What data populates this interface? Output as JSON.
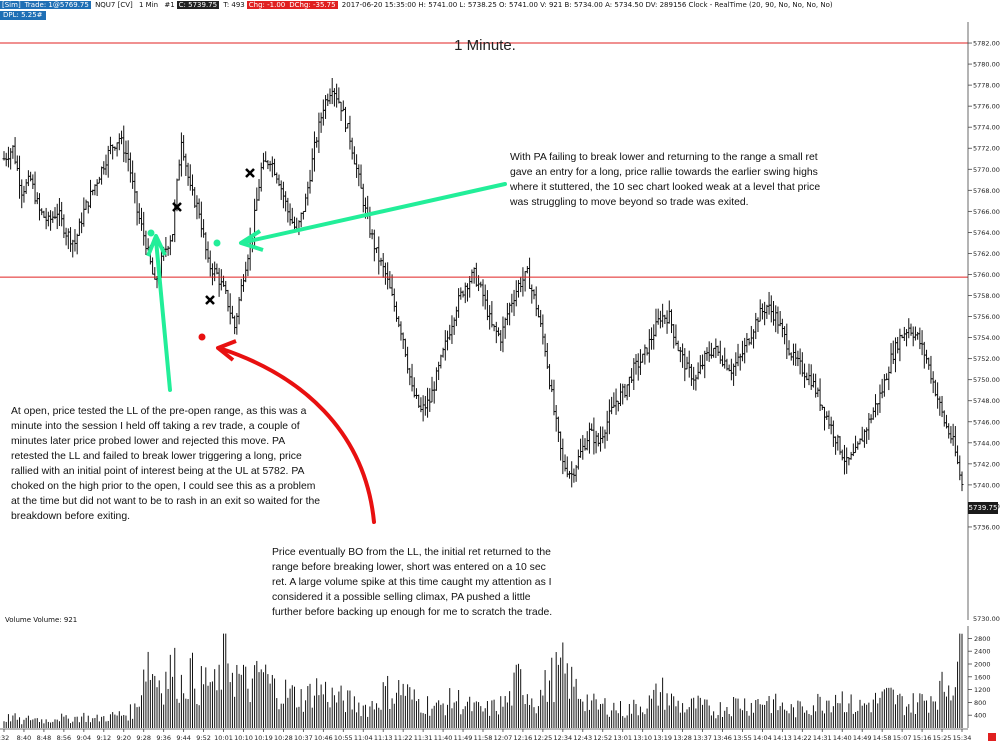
{
  "header": {
    "sim": "[Sim]",
    "trade": "Trade: 1@5769.75",
    "instrument": "NQU7 [CV]",
    "interval": "1 Min",
    "bar": "#1",
    "close": "C: 5739.75",
    "ticks": "T: 493",
    "chg": "Chg: -1.00",
    "dchg": "DChg: -35.75",
    "session": "2017-06-20 15:35:00 H: 5741.00 L: 5738.25 O: 5741.00 V: 921 B: 5734.00 A: 5734.50 DV: 289156 Clock - RealTime  (20, 90, No, No, No, No)",
    "dpl": "DPL: 5.25#"
  },
  "title": "1 Minute.",
  "annotations": {
    "open_note": "At open, price tested the LL of the pre-open range, as this was a minute into the session I held off taking a rev trade, a couple of minutes later price probed lower and rejected this move. PA retested the LL and failed to break lower triggering a long, price rallied with an initial point of interest being at the UL at 5782.  PA choked on the high prior to the open, I could see this as a problem at the time but did not want to be to rash in an exit so waited for the breakdown before exiting.",
    "long_note": "With PA failing to break lower and returning to the range a small ret gave an entry for a long, price rallie towards the earlier swing highs where it stuttered, the 10 sec chart looked weak at a level that price was struggling to move beyond so trade was exited.",
    "short_note": "Price eventually BO from the LL, the initial ret returned to the range before breaking lower, short was entered on a 10 sec ret.  A large volume spike at this time caught my attention as I considered it a possible selling climax, PA pushed a little further before backing up enough for me to scratch the trade."
  },
  "volume_panel": {
    "label": "Volume  Volume: 921",
    "ticks": [
      "400",
      "800",
      "1200",
      "1600",
      "2000",
      "2400",
      "2800"
    ],
    "top_tick": "5730.00"
  },
  "last_price_tag": "5739.75",
  "colors": {
    "up": "#111111",
    "level": "#e02020",
    "green": "#22ee99",
    "red": "#e81010",
    "tag": "#1a1a1a"
  },
  "chart_data": {
    "type": "bar",
    "ylim": [
      5734,
      5784
    ],
    "y_ticks": [
      "5736.00",
      "5738.00",
      "5740.00",
      "5742.00",
      "5744.00",
      "5746.00",
      "5748.00",
      "5750.00",
      "5752.00",
      "5754.00",
      "5756.00",
      "5758.00",
      "5760.00",
      "5762.00",
      "5764.00",
      "5766.00",
      "5768.00",
      "5770.00",
      "5772.00",
      "5774.00",
      "5776.00",
      "5778.00",
      "5780.00",
      "5782.00"
    ],
    "x_ticks": [
      ":32",
      "8:40",
      "8:48",
      "8:56",
      "9:04",
      "9:12",
      "9:20",
      "9:28",
      "9:36",
      "9:44",
      "9:52",
      "10:01",
      "10:10",
      "10:19",
      "10:28",
      "10:37",
      "10:46",
      "10:55",
      "11:04",
      "11:13",
      "11:22",
      "11:31",
      "11:40",
      "11:49",
      "11:58",
      "12:07",
      "12:16",
      "12:25",
      "12:34",
      "12:43",
      "12:52",
      "13:01",
      "13:10",
      "13:19",
      "13:28",
      "13:37",
      "13:46",
      "13:55",
      "14:04",
      "14:13",
      "14:22",
      "14:31",
      "14:40",
      "14:49",
      "14:58",
      "15:07",
      "15:16",
      "15:25",
      "15:34"
    ],
    "levels": [
      5782,
      5759.75
    ],
    "close_path": [
      [
        0,
        5771
      ],
      [
        4,
        5772
      ],
      [
        8,
        5768
      ],
      [
        12,
        5769
      ],
      [
        16,
        5766
      ],
      [
        20,
        5765
      ],
      [
        24,
        5766
      ],
      [
        28,
        5764
      ],
      [
        32,
        5763
      ],
      [
        36,
        5766
      ],
      [
        40,
        5768
      ],
      [
        44,
        5770
      ],
      [
        48,
        5772
      ],
      [
        52,
        5773
      ],
      [
        56,
        5771
      ],
      [
        60,
        5766
      ],
      [
        64,
        5763
      ],
      [
        68,
        5759
      ],
      [
        72,
        5762
      ],
      [
        76,
        5764
      ],
      [
        80,
        5773
      ],
      [
        84,
        5768
      ],
      [
        88,
        5766
      ],
      [
        92,
        5761
      ],
      [
        96,
        5760
      ],
      [
        100,
        5758
      ],
      [
        104,
        5755
      ],
      [
        108,
        5760
      ],
      [
        112,
        5764
      ],
      [
        116,
        5770
      ],
      [
        120,
        5771
      ],
      [
        124,
        5769
      ],
      [
        128,
        5766
      ],
      [
        132,
        5764
      ],
      [
        136,
        5767
      ],
      [
        140,
        5772
      ],
      [
        144,
        5776
      ],
      [
        148,
        5778
      ],
      [
        152,
        5776
      ],
      [
        156,
        5773
      ],
      [
        160,
        5769
      ],
      [
        164,
        5765
      ],
      [
        168,
        5762
      ],
      [
        172,
        5760
      ],
      [
        176,
        5757
      ],
      [
        180,
        5754
      ],
      [
        184,
        5749
      ],
      [
        188,
        5747
      ],
      [
        192,
        5748
      ],
      [
        196,
        5751
      ],
      [
        200,
        5754
      ],
      [
        204,
        5757
      ],
      [
        208,
        5759
      ],
      [
        212,
        5760
      ],
      [
        216,
        5758
      ],
      [
        220,
        5755
      ],
      [
        224,
        5754
      ],
      [
        228,
        5757
      ],
      [
        232,
        5759
      ],
      [
        236,
        5760
      ],
      [
        240,
        5757
      ],
      [
        244,
        5753
      ],
      [
        248,
        5747
      ],
      [
        252,
        5742
      ],
      [
        256,
        5741
      ],
      [
        260,
        5743
      ],
      [
        264,
        5745
      ],
      [
        268,
        5744
      ],
      [
        272,
        5746
      ],
      [
        276,
        5748
      ],
      [
        280,
        5749
      ],
      [
        284,
        5751
      ],
      [
        288,
        5752
      ],
      [
        292,
        5754
      ],
      [
        296,
        5756
      ],
      [
        300,
        5756
      ],
      [
        304,
        5753
      ],
      [
        308,
        5751
      ],
      [
        312,
        5750
      ],
      [
        316,
        5752
      ],
      [
        320,
        5753
      ],
      [
        324,
        5752
      ],
      [
        328,
        5751
      ],
      [
        332,
        5752
      ],
      [
        336,
        5754
      ],
      [
        340,
        5756
      ],
      [
        344,
        5757
      ],
      [
        348,
        5756
      ],
      [
        352,
        5754
      ],
      [
        356,
        5752
      ],
      [
        360,
        5751
      ],
      [
        364,
        5750
      ],
      [
        368,
        5748
      ],
      [
        372,
        5746
      ],
      [
        376,
        5744
      ],
      [
        380,
        5742
      ],
      [
        384,
        5743
      ],
      [
        388,
        5745
      ],
      [
        392,
        5747
      ],
      [
        396,
        5749
      ],
      [
        400,
        5752
      ],
      [
        404,
        5754
      ],
      [
        408,
        5755
      ],
      [
        412,
        5754
      ],
      [
        416,
        5752
      ],
      [
        420,
        5749
      ],
      [
        424,
        5746
      ],
      [
        428,
        5744
      ],
      [
        432,
        5740
      ]
    ],
    "volume_bars": [
      [
        0,
        300
      ],
      [
        4,
        400
      ],
      [
        8,
        200
      ],
      [
        12,
        350
      ],
      [
        16,
        300
      ],
      [
        20,
        250
      ],
      [
        24,
        400
      ],
      [
        28,
        300
      ],
      [
        32,
        350
      ],
      [
        36,
        400
      ],
      [
        40,
        300
      ],
      [
        44,
        350
      ],
      [
        48,
        400
      ],
      [
        52,
        450
      ],
      [
        56,
        500
      ],
      [
        60,
        700
      ],
      [
        64,
        2500
      ],
      [
        68,
        1800
      ],
      [
        72,
        1600
      ],
      [
        76,
        2100
      ],
      [
        80,
        1500
      ],
      [
        84,
        1900
      ],
      [
        88,
        1400
      ],
      [
        92,
        1700
      ],
      [
        96,
        1300
      ],
      [
        100,
        2700
      ],
      [
        104,
        1900
      ],
      [
        108,
        1600
      ],
      [
        112,
        1400
      ],
      [
        116,
        2000
      ],
      [
        120,
        1500
      ],
      [
        124,
        1300
      ],
      [
        128,
        1200
      ],
      [
        132,
        1100
      ],
      [
        136,
        1000
      ],
      [
        140,
        1400
      ],
      [
        144,
        1300
      ],
      [
        148,
        1100
      ],
      [
        152,
        1000
      ],
      [
        156,
        900
      ],
      [
        160,
        800
      ],
      [
        164,
        700
      ],
      [
        168,
        900
      ],
      [
        172,
        1300
      ],
      [
        176,
        1200
      ],
      [
        180,
        1400
      ],
      [
        184,
        1000
      ],
      [
        188,
        900
      ],
      [
        192,
        800
      ],
      [
        196,
        700
      ],
      [
        200,
        900
      ],
      [
        204,
        1000
      ],
      [
        208,
        800
      ],
      [
        212,
        700
      ],
      [
        216,
        600
      ],
      [
        220,
        700
      ],
      [
        224,
        800
      ],
      [
        228,
        1000
      ],
      [
        232,
        1700
      ],
      [
        236,
        1300
      ],
      [
        240,
        900
      ],
      [
        244,
        1400
      ],
      [
        248,
        1800
      ],
      [
        252,
        2000
      ],
      [
        256,
        1500
      ],
      [
        260,
        1200
      ],
      [
        264,
        900
      ],
      [
        268,
        700
      ],
      [
        272,
        800
      ],
      [
        276,
        700
      ],
      [
        280,
        600
      ],
      [
        284,
        700
      ],
      [
        288,
        800
      ],
      [
        292,
        900
      ],
      [
        296,
        1300
      ],
      [
        300,
        1000
      ],
      [
        304,
        800
      ],
      [
        308,
        700
      ],
      [
        312,
        800
      ],
      [
        316,
        700
      ],
      [
        320,
        600
      ],
      [
        324,
        700
      ],
      [
        328,
        800
      ],
      [
        332,
        900
      ],
      [
        336,
        800
      ],
      [
        340,
        900
      ],
      [
        344,
        1000
      ],
      [
        348,
        800
      ],
      [
        352,
        700
      ],
      [
        356,
        600
      ],
      [
        360,
        700
      ],
      [
        364,
        800
      ],
      [
        368,
        900
      ],
      [
        372,
        1000
      ],
      [
        376,
        1200
      ],
      [
        380,
        900
      ],
      [
        384,
        700
      ],
      [
        388,
        800
      ],
      [
        392,
        900
      ],
      [
        396,
        1000
      ],
      [
        400,
        1100
      ],
      [
        404,
        900
      ],
      [
        408,
        800
      ],
      [
        412,
        900
      ],
      [
        416,
        1000
      ],
      [
        420,
        1200
      ],
      [
        424,
        1400
      ],
      [
        428,
        1700
      ],
      [
        432,
        2900
      ]
    ]
  }
}
